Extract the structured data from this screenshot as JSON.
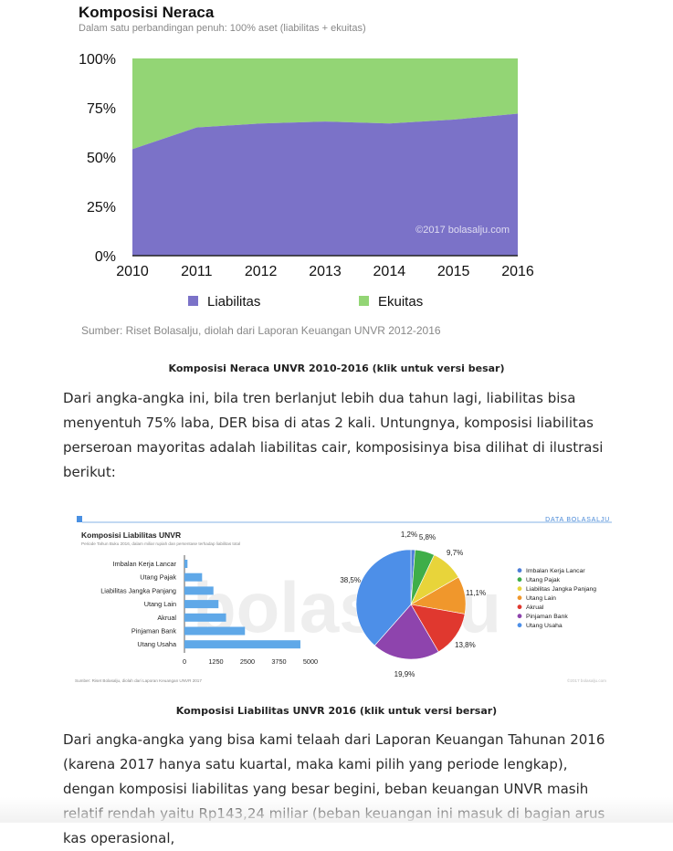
{
  "chart1": {
    "title": "Komposisi Neraca",
    "subtitle": "Dalam satu perbandingan penuh: 100% aset (liabilitas + ekuitas)",
    "watermark": "©2017 bolasalju.com",
    "source": "Sumber: Riset Bolasalju, diolah dari Laporan Keuangan UNVR 2012-2016",
    "caption": "Komposisi Neraca UNVR 2010-2016 (klik untuk versi besar)"
  },
  "paragraph1": "Dari angka-angka ini, bila tren berlanjut lebih dua tahun lagi, liabilitas bisa menyentuh 75% laba, DER bisa di atas 2 kali. Untungnya, komposisi liabilitas perseroan mayoritas adalah liabilitas cair, komposisinya bisa dilihat di ilustrasi berikut:",
  "chart2": {
    "title": "Komposisi Liabilitas UNVR",
    "subtitle": "Periode Tahun Buku 2016, dalam miliar rupiah dan persentase terhadap liabilitas total",
    "brand": "DATA BOLASALJU",
    "source": "Sumber: Riset Bolasalju, diolah dari Laporan Keuangan UNVR 2017",
    "watermark_small": "©2017 bolasalju.com",
    "watermark_big": "bolasalju",
    "caption": "Komposisi Liabilitas UNVR 2016 (klik untuk versi bersar)"
  },
  "paragraph2": "Dari angka-angka yang bisa kami telaah dari Laporan Keuangan Tahunan 2016 (karena 2017 hanya satu kuartal, maka kami pilih yang periode lengkap), dengan komposisi liabilitas yang besar begini, beban keuangan UNVR masih relatif rendah yaitu Rp143,24 miliar (beban keuangan ini masuk di bagian arus kas operasional,",
  "chart_data": [
    {
      "type": "area",
      "stacked": true,
      "x": [
        "2010",
        "2011",
        "2012",
        "2013",
        "2014",
        "2015",
        "2016"
      ],
      "yticks": [
        "0%",
        "25%",
        "50%",
        "75%",
        "100%"
      ],
      "ylim": [
        0,
        100
      ],
      "series": [
        {
          "name": "Liabilitas",
          "values": [
            54,
            65,
            67,
            68,
            67,
            69,
            72
          ],
          "color": "#7b72c8"
        },
        {
          "name": "Ekuitas",
          "values": [
            46,
            35,
            33,
            32,
            33,
            31,
            28
          ],
          "color": "#93d575"
        }
      ],
      "legend": "bottom"
    },
    {
      "type": "bar",
      "orientation": "horizontal",
      "categories": [
        "Imbalan Kerja Lancar",
        "Utang Pajak",
        "Liabilitas Jangka Panjang",
        "Utang Lain",
        "Akrual",
        "Pinjaman Bank",
        "Utang Usaha"
      ],
      "values": [
        120,
        700,
        1150,
        1350,
        1650,
        2400,
        4600
      ],
      "xticks": [
        "0",
        "1250",
        "2500",
        "3750",
        "5000"
      ],
      "xlim": [
        0,
        5000
      ],
      "color": "#5fa8e8"
    },
    {
      "type": "pie",
      "labels": [
        "Imbalan Kerja Lancar",
        "Utang Pajak",
        "Liabilitas Jangka Panjang",
        "Utang Lain",
        "Akrual",
        "Pinjaman Bank",
        "Utang Usaha"
      ],
      "values": [
        1.2,
        5.8,
        9.7,
        11.1,
        13.8,
        19.9,
        38.5
      ],
      "value_labels": [
        "1,2%",
        "5,8%",
        "9,7%",
        "11,1%",
        "13,8%",
        "19,9%",
        "38,5%"
      ],
      "colors": [
        "#4e7fd8",
        "#3fae49",
        "#e8d43a",
        "#f0972c",
        "#e0382f",
        "#8e44ad",
        "#4d8fe8"
      ],
      "legend": "right"
    }
  ]
}
